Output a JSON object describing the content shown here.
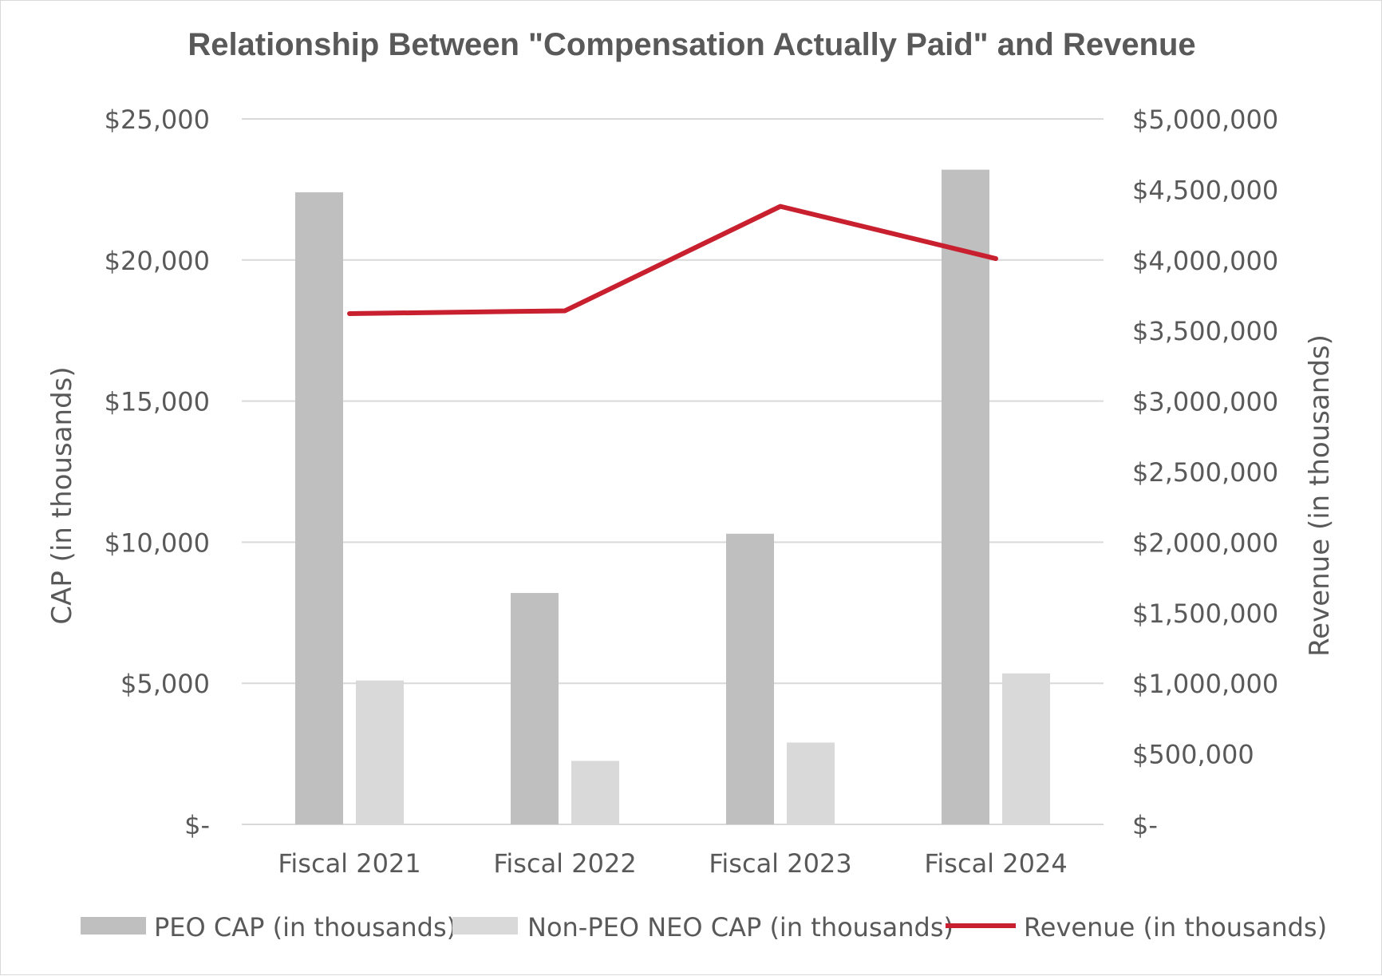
{
  "chart_data": {
    "type": "bar",
    "title": "Relationship Between \"Compensation Actually Paid\" and Revenue",
    "categories": [
      "Fiscal 2021",
      "Fiscal 2022",
      "Fiscal 2023",
      "Fiscal 2024"
    ],
    "series": [
      {
        "name": "PEO CAP (in thousands)",
        "type": "bar",
        "axis": "left",
        "color": "#bfbfbf",
        "values": [
          22400,
          8200,
          10300,
          23200
        ]
      },
      {
        "name": "Non-PEO NEO CAP (in thousands)",
        "type": "bar",
        "axis": "left",
        "color": "#d9d9d9",
        "values": [
          5100,
          2250,
          2900,
          5350
        ]
      },
      {
        "name": "Revenue (in thousands)",
        "type": "line",
        "axis": "right",
        "color": "#c8202f",
        "values": [
          3620000,
          3640000,
          4380000,
          4010000
        ]
      }
    ],
    "left_axis": {
      "label": "CAP (in thousands)",
      "min": 0,
      "max": 25000,
      "step": 5000,
      "tick_labels": [
        "$-",
        "$5,000",
        "$10,000",
        "$15,000",
        "$20,000",
        "$25,000"
      ]
    },
    "right_axis": {
      "label": "Revenue (in thousands)",
      "min": 0,
      "max": 5000000,
      "step": 500000,
      "tick_labels": [
        "$-",
        "$500,000",
        "$1,000,000",
        "$1,500,000",
        "$2,000,000",
        "$2,500,000",
        "$3,000,000",
        "$3,500,000",
        "$4,000,000",
        "$4,500,000",
        "$5,000,000"
      ]
    },
    "grid": true,
    "legend_position": "bottom"
  }
}
